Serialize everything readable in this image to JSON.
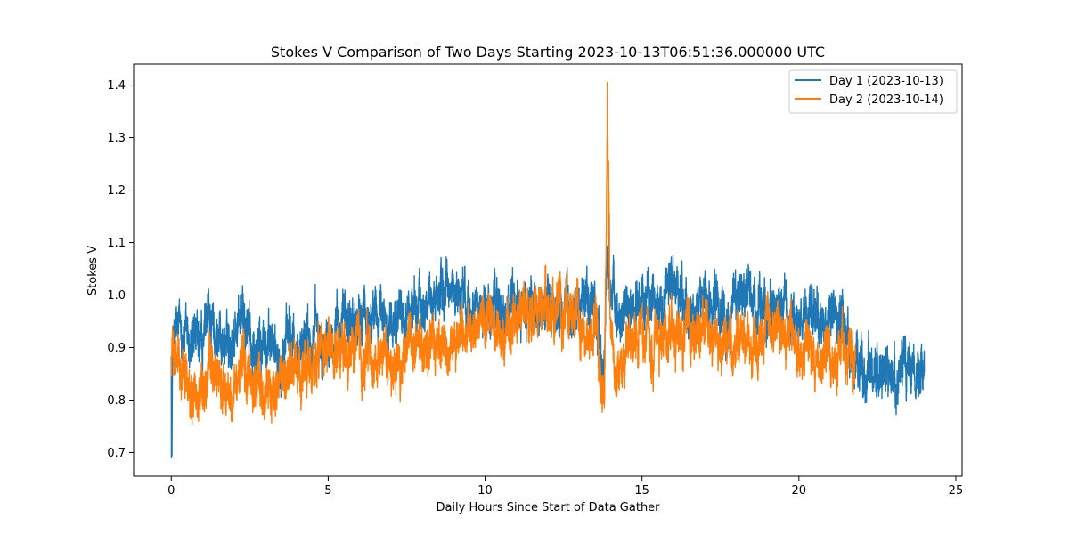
{
  "chart_data": {
    "type": "line",
    "title": "Stokes V Comparison of Two Days Starting 2023-10-13T06:51:36.000000 UTC",
    "xlabel": "Daily Hours Since Start of Data Gather",
    "ylabel": "Stokes V",
    "xlim": [
      -1.2,
      25.2
    ],
    "ylim": [
      0.655,
      1.44
    ],
    "xticks": [
      0,
      5,
      10,
      15,
      20,
      25
    ],
    "xtick_labels": [
      "0",
      "5",
      "10",
      "15",
      "20",
      "25"
    ],
    "yticks": [
      0.7,
      0.8,
      0.9,
      1.0,
      1.1,
      1.2,
      1.3,
      1.4
    ],
    "ytick_labels": [
      "0.7",
      "0.8",
      "0.9",
      "1.0",
      "1.1",
      "1.2",
      "1.3",
      "1.4"
    ],
    "grid": false,
    "legend_position": "top-right",
    "series": [
      {
        "name": "Day 1 (2023-10-13)",
        "color": "#1f77b4",
        "x": [
          0,
          0.02,
          0.05,
          0.1,
          0.3,
          0.6,
          1.0,
          1.2,
          1.5,
          1.8,
          2.0,
          2.2,
          2.4,
          2.6,
          3.0,
          3.5,
          4.0,
          4.5,
          5.0,
          5.5,
          6.0,
          6.5,
          7.0,
          7.5,
          8.0,
          8.5,
          9.0,
          9.5,
          10.0,
          10.5,
          11.0,
          11.5,
          12.0,
          12.5,
          13.0,
          13.5,
          13.8,
          13.9,
          14.0,
          14.2,
          14.5,
          15.0,
          15.5,
          16.0,
          16.5,
          17.0,
          17.5,
          18.0,
          18.5,
          19.0,
          19.5,
          20.0,
          20.5,
          21.0,
          21.3,
          21.5,
          21.7,
          22.0,
          22.5,
          23.0,
          23.5,
          24.0
        ],
        "y": [
          0.93,
          0.69,
          0.92,
          0.92,
          0.93,
          0.9,
          0.89,
          0.96,
          0.92,
          0.91,
          0.93,
          0.96,
          0.94,
          0.91,
          0.9,
          0.91,
          0.9,
          0.93,
          0.92,
          0.94,
          0.95,
          0.96,
          0.95,
          0.96,
          0.98,
          1.0,
          1.01,
          0.99,
          0.98,
          0.97,
          0.96,
          0.98,
          0.97,
          0.98,
          0.99,
          0.98,
          0.86,
          1.1,
          0.98,
          0.94,
          0.97,
          0.99,
          0.98,
          1.0,
          0.98,
          0.99,
          0.96,
          1.0,
          0.98,
          0.97,
          0.95,
          0.96,
          0.94,
          0.95,
          0.96,
          0.93,
          0.88,
          0.86,
          0.87,
          0.85,
          0.86,
          0.87
        ]
      },
      {
        "name": "Day 2 (2023-10-14)",
        "color": "#ff7f0e",
        "x": [
          0,
          0.05,
          0.1,
          0.3,
          0.6,
          1.0,
          1.2,
          1.5,
          1.8,
          2.0,
          2.2,
          2.5,
          3.0,
          3.5,
          4.0,
          4.5,
          5.0,
          5.5,
          6.0,
          6.5,
          7.0,
          7.5,
          8.0,
          8.5,
          9.0,
          9.5,
          10.0,
          10.5,
          11.0,
          11.5,
          12.0,
          12.5,
          13.0,
          13.5,
          13.8,
          13.9,
          14.0,
          14.2,
          14.5,
          15.0,
          15.5,
          16.0,
          16.5,
          17.0,
          17.5,
          18.0,
          18.5,
          19.0,
          19.5,
          20.0,
          20.5,
          21.0,
          21.5,
          21.8
        ],
        "y": [
          0.86,
          0.9,
          0.86,
          0.87,
          0.83,
          0.82,
          0.87,
          0.84,
          0.82,
          0.79,
          0.86,
          0.83,
          0.82,
          0.83,
          0.84,
          0.86,
          0.88,
          0.89,
          0.89,
          0.88,
          0.87,
          0.89,
          0.9,
          0.91,
          0.92,
          0.94,
          0.95,
          0.93,
          0.94,
          0.96,
          0.97,
          0.97,
          0.96,
          0.94,
          0.8,
          1.33,
          0.93,
          0.86,
          0.9,
          0.92,
          0.91,
          0.92,
          0.93,
          0.92,
          0.91,
          0.9,
          0.92,
          0.94,
          0.92,
          0.9,
          0.88,
          0.89,
          0.88,
          0.86
        ]
      }
    ]
  }
}
